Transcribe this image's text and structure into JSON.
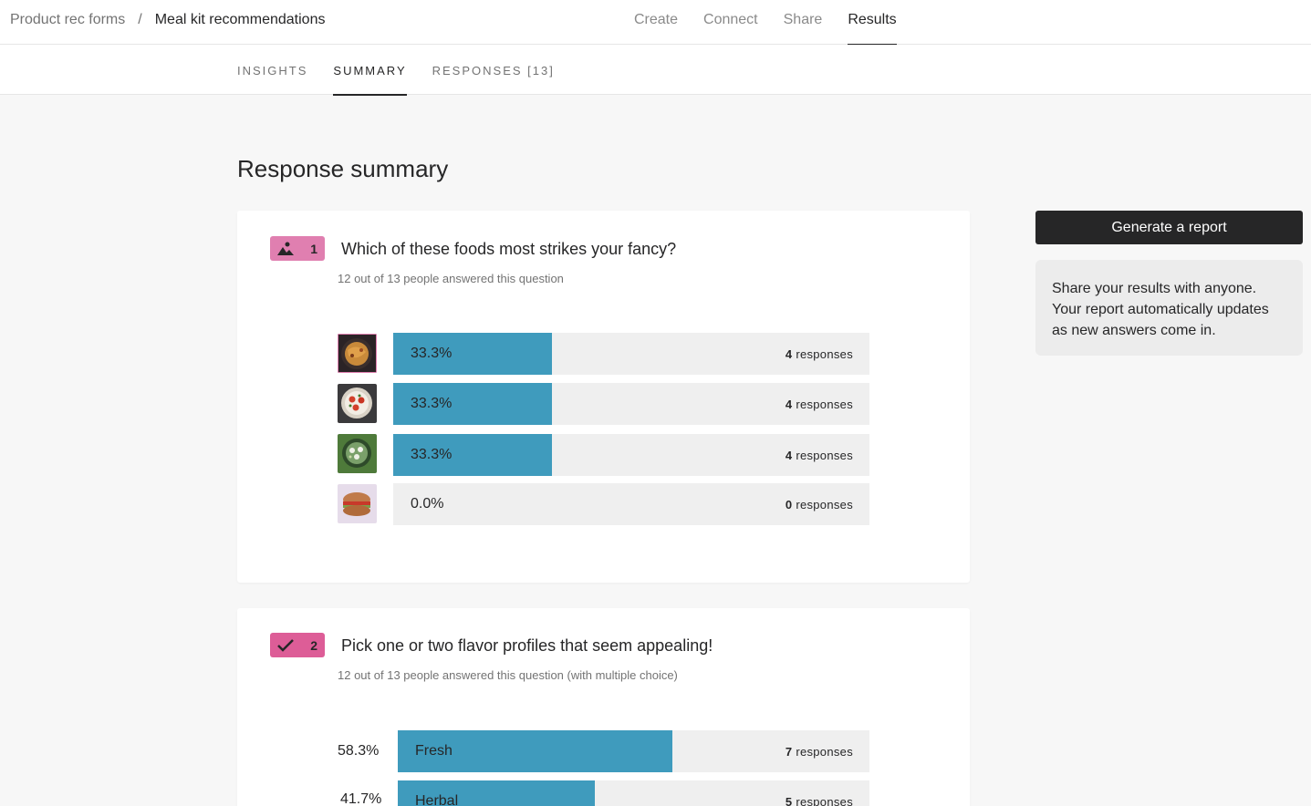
{
  "breadcrumb": {
    "parent": "Product rec forms",
    "separator": "/",
    "current": "Meal kit recommendations"
  },
  "topnav": [
    {
      "label": "Create",
      "active": false
    },
    {
      "label": "Connect",
      "active": false
    },
    {
      "label": "Share",
      "active": false
    },
    {
      "label": "Results",
      "active": true
    }
  ],
  "subtabs": [
    {
      "label": "INSIGHTS",
      "active": false
    },
    {
      "label": "SUMMARY",
      "active": true
    },
    {
      "label": "RESPONSES [13]",
      "active": false
    }
  ],
  "page_title": "Response summary",
  "sidebar": {
    "generate_label": "Generate a report",
    "share_text": "Share your results with anyone. Your report automatically updates as new answers come in."
  },
  "questions": [
    {
      "number": "1",
      "badge_icon": "image-icon",
      "badge_color": "#e07fb0",
      "title": "Which of these foods most strikes your fancy?",
      "meta": "12 out of 13 people answered this question",
      "answers": [
        {
          "thumb": "noodles-photo",
          "pct_label": "33.3%",
          "fraction": 0.333,
          "count": "4",
          "resp_word": " responses"
        },
        {
          "thumb": "caprese-photo",
          "pct_label": "33.3%",
          "fraction": 0.333,
          "count": "4",
          "resp_word": " responses"
        },
        {
          "thumb": "salad-photo",
          "pct_label": "33.3%",
          "fraction": 0.333,
          "count": "4",
          "resp_word": " responses"
        },
        {
          "thumb": "sandwich-photo",
          "pct_label": "0.0%",
          "fraction": 0.0,
          "count": "0",
          "resp_word": " responses"
        }
      ]
    },
    {
      "number": "2",
      "badge_icon": "checkmark-icon",
      "badge_color": "#dd5d97",
      "title": "Pick one or two flavor profiles that seem appealing!",
      "meta": "12 out of 13 people answered this question (with multiple choice)",
      "answers": [
        {
          "pct_label": "58.3%",
          "label": "Fresh",
          "fraction": 0.583,
          "count": "7",
          "resp_word": " responses"
        },
        {
          "pct_label": "41.7%",
          "label": "Herbal",
          "fraction": 0.417,
          "count": "5",
          "resp_word": " responses"
        }
      ]
    }
  ],
  "colors": {
    "bar_fill": "#3f9bbd",
    "bar_track": "#efefef",
    "accent_dark": "#262627"
  }
}
